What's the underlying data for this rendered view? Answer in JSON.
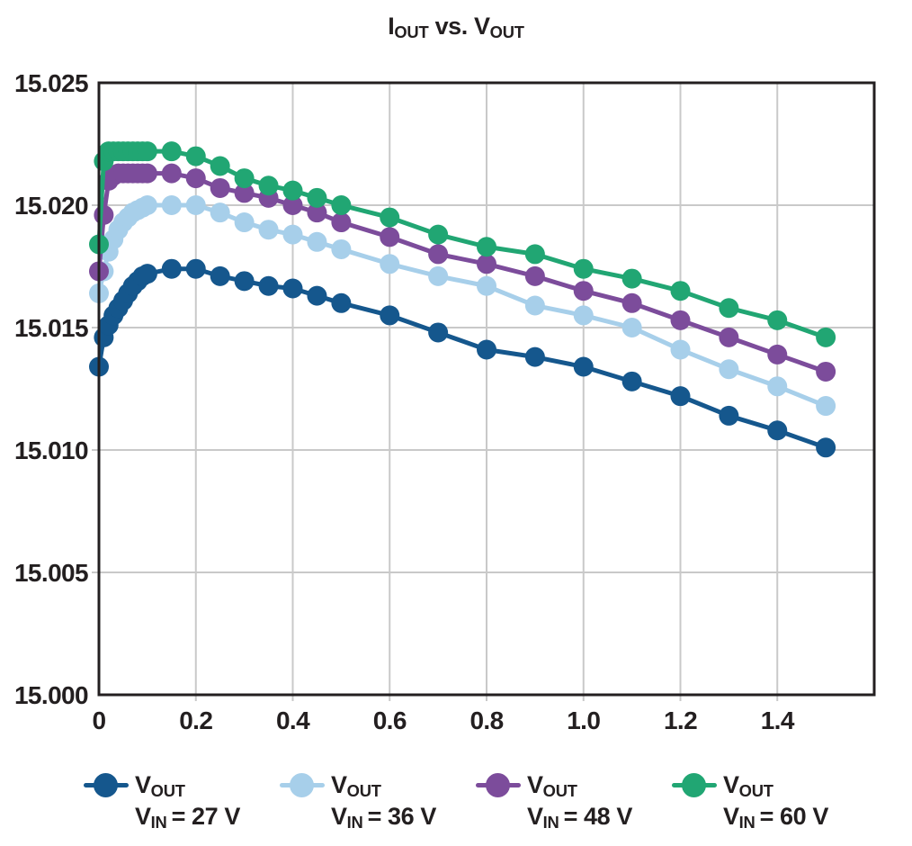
{
  "title": {
    "t1": "I",
    "s1": "OUT",
    "t2": " vs. V",
    "s2": "OUT"
  },
  "colors": {
    "axis": "#231F20",
    "grid": "#C9C9C9",
    "text": "#231F20",
    "background": "#FFFFFF",
    "series_navy": "#15578D",
    "series_lightblue": "#A7CFEA",
    "series_purple": "#7C4C9B",
    "series_green": "#21A673"
  },
  "chart_data": {
    "type": "line",
    "title": "IOUT vs. VOUT",
    "xlabel": "",
    "ylabel": "",
    "xlim": [
      0,
      1.6
    ],
    "ylim": [
      15.0,
      15.025
    ],
    "grid": true,
    "legend_position": "bottom",
    "marker": "circle",
    "marker_radius": 11,
    "line_width": 5,
    "x_ticks": [
      0,
      0.2,
      0.4,
      0.6,
      0.8,
      1.0,
      1.2,
      1.4
    ],
    "x_tick_labels": [
      "0",
      "0.2",
      "0.4",
      "0.6",
      "0.8",
      "1.0",
      "1.2",
      "1.4"
    ],
    "y_ticks": [
      15.025,
      15.02,
      15.015,
      15.01,
      15.005,
      15.0
    ],
    "y_tick_labels": [
      "15.025",
      "15.020",
      "15.015",
      "15.010",
      "15.005",
      "15.000"
    ],
    "x": [
      0,
      0.01,
      0.02,
      0.03,
      0.04,
      0.05,
      0.06,
      0.07,
      0.08,
      0.09,
      0.1,
      0.15,
      0.2,
      0.25,
      0.3,
      0.35,
      0.4,
      0.45,
      0.5,
      0.6,
      0.7,
      0.8,
      0.9,
      1.0,
      1.1,
      1.2,
      1.3,
      1.4,
      1.5
    ],
    "series": [
      {
        "name": "VOUT VIN = 27 V",
        "color": "#15578D",
        "values": [
          15.0134,
          15.0146,
          15.0151,
          15.0155,
          15.0158,
          15.0161,
          15.0164,
          15.0167,
          15.0169,
          15.0171,
          15.0172,
          15.0174,
          15.0174,
          15.0171,
          15.0169,
          15.0167,
          15.0166,
          15.0163,
          15.016,
          15.0155,
          15.0148,
          15.0141,
          15.0138,
          15.0134,
          15.0128,
          15.0122,
          15.0114,
          15.0108,
          15.0101
        ]
      },
      {
        "name": "VOUT VIN = 36 V",
        "color": "#A7CFEA",
        "values": [
          15.0164,
          15.0173,
          15.0181,
          15.0186,
          15.019,
          15.0193,
          15.0195,
          15.0197,
          15.0198,
          15.0199,
          15.02,
          15.02,
          15.02,
          15.0197,
          15.0193,
          15.019,
          15.0188,
          15.0185,
          15.0182,
          15.0176,
          15.0171,
          15.0167,
          15.0159,
          15.0155,
          15.015,
          15.0141,
          15.0133,
          15.0126,
          15.0118
        ]
      },
      {
        "name": "VOUT VIN = 48 V",
        "color": "#7C4C9B",
        "values": [
          15.0173,
          15.0196,
          15.021,
          15.0212,
          15.0213,
          15.0213,
          15.0213,
          15.0213,
          15.0213,
          15.0213,
          15.0213,
          15.0213,
          15.0211,
          15.0207,
          15.0205,
          15.0203,
          15.02,
          15.0197,
          15.0193,
          15.0187,
          15.018,
          15.0176,
          15.0171,
          15.0165,
          15.016,
          15.0153,
          15.0146,
          15.0139,
          15.0132
        ]
      },
      {
        "name": "VOUT VIN = 60 V",
        "color": "#21A673",
        "values": [
          15.0184,
          15.0218,
          15.0222,
          15.0222,
          15.0222,
          15.0222,
          15.0222,
          15.0222,
          15.0222,
          15.0222,
          15.0222,
          15.0222,
          15.022,
          15.0216,
          15.0211,
          15.0208,
          15.0206,
          15.0203,
          15.02,
          15.0195,
          15.0188,
          15.0183,
          15.018,
          15.0174,
          15.017,
          15.0165,
          15.0158,
          15.0153,
          15.0146
        ]
      }
    ]
  },
  "legend": {
    "entries": [
      {
        "id": "vin-27v",
        "color": "#15578D",
        "line1_main": "V",
        "line1_sub": "OUT",
        "line2_main": "V",
        "line2_sub": "IN",
        "line2_rest": "= 27 V"
      },
      {
        "id": "vin-36v",
        "color": "#A7CFEA",
        "line1_main": "V",
        "line1_sub": "OUT",
        "line2_main": "V",
        "line2_sub": "IN",
        "line2_rest": "= 36 V"
      },
      {
        "id": "vin-48v",
        "color": "#7C4C9B",
        "line1_main": "V",
        "line1_sub": "OUT",
        "line2_main": "V",
        "line2_sub": "IN",
        "line2_rest": "= 48 V"
      },
      {
        "id": "vin-60v",
        "color": "#21A673",
        "line1_main": "V",
        "line1_sub": "OUT",
        "line2_main": "V",
        "line2_sub": "IN",
        "line2_rest": "= 60 V"
      }
    ]
  }
}
